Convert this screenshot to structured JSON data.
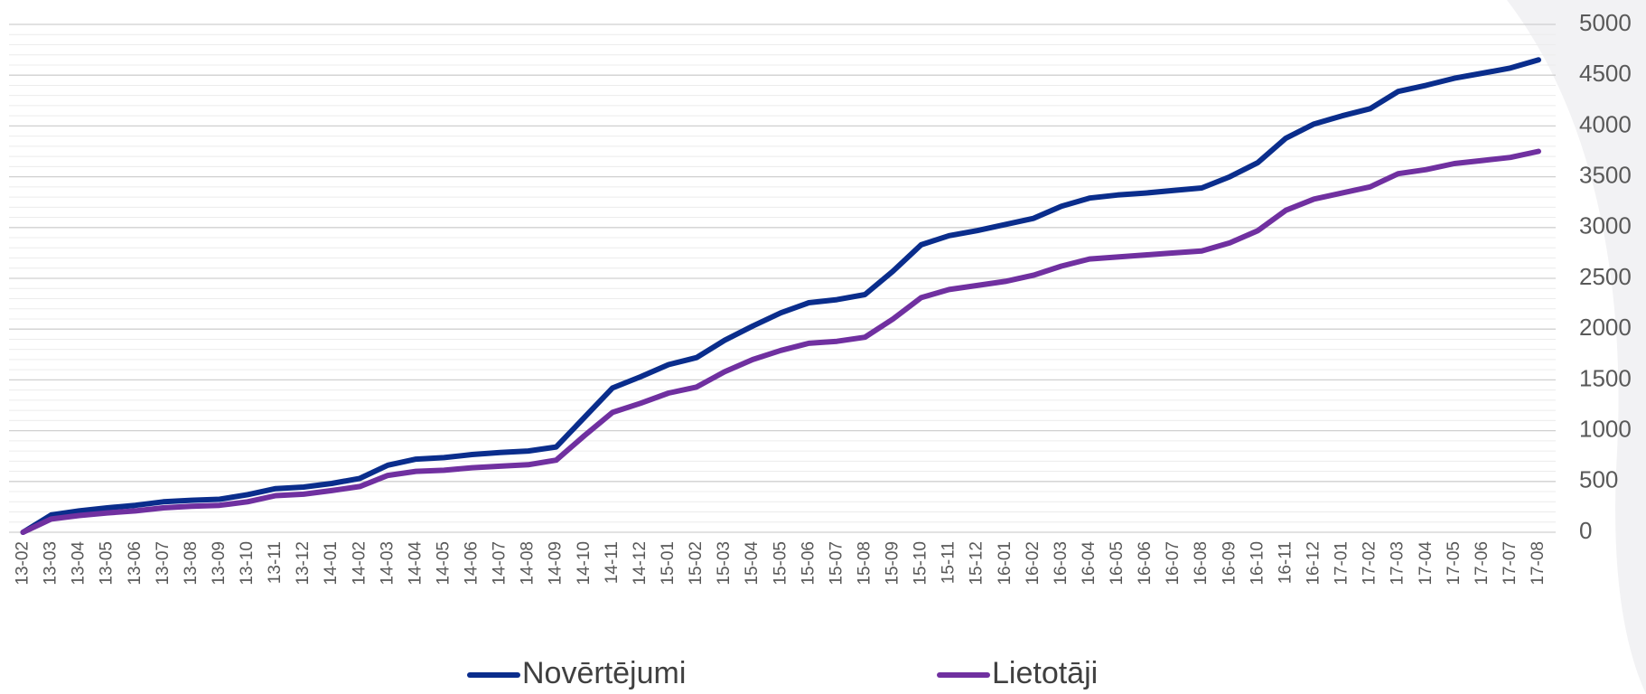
{
  "chart_data": {
    "type": "line",
    "categories": [
      "13-02",
      "13-03",
      "13-04",
      "13-05",
      "13-06",
      "13-07",
      "13-08",
      "13-09",
      "13-10",
      "13-11",
      "13-12",
      "14-01",
      "14-02",
      "14-03",
      "14-04",
      "14-05",
      "14-06",
      "14-07",
      "14-08",
      "14-09",
      "14-10",
      "14-11",
      "14-12",
      "15-01",
      "15-02",
      "15-03",
      "15-04",
      "15-05",
      "15-06",
      "15-07",
      "15-08",
      "15-09",
      "15-10",
      "15-11",
      "15-12",
      "16-01",
      "16-02",
      "16-03",
      "16-04",
      "16-05",
      "16-06",
      "16-07",
      "16-08",
      "16-09",
      "16-10",
      "16-11",
      "16-12",
      "17-01",
      "17-02",
      "17-03",
      "17-04",
      "17-05",
      "17-06",
      "17-07",
      "17-08"
    ],
    "series": [
      {
        "name": "Novērtējumi",
        "color": "#0a2d8c",
        "values": [
          0,
          170,
          210,
          240,
          265,
          300,
          315,
          325,
          370,
          430,
          445,
          480,
          530,
          660,
          720,
          735,
          765,
          785,
          800,
          840,
          1130,
          1420,
          1530,
          1650,
          1720,
          1890,
          2030,
          2160,
          2260,
          2290,
          2340,
          2570,
          2830,
          2920,
          2970,
          3030,
          3090,
          3210,
          3290,
          3320,
          3340,
          3365,
          3390,
          3500,
          3640,
          3880,
          4020,
          4100,
          4170,
          4340,
          4400,
          4470,
          4520,
          4570,
          4650
        ]
      },
      {
        "name": "Lietotāji",
        "color": "#7030a0",
        "values": [
          0,
          130,
          165,
          190,
          210,
          240,
          255,
          265,
          300,
          360,
          375,
          410,
          450,
          560,
          600,
          610,
          635,
          650,
          665,
          710,
          950,
          1180,
          1270,
          1370,
          1430,
          1580,
          1700,
          1790,
          1860,
          1880,
          1920,
          2100,
          2310,
          2390,
          2430,
          2470,
          2530,
          2620,
          2690,
          2710,
          2730,
          2750,
          2770,
          2850,
          2970,
          3170,
          3280,
          3340,
          3400,
          3530,
          3570,
          3630,
          3660,
          3690,
          3750
        ]
      }
    ],
    "ylim": [
      0,
      5000
    ],
    "yticks": [
      0,
      500,
      1000,
      1500,
      2000,
      2500,
      3000,
      3500,
      4000,
      4500,
      5000
    ],
    "grid": true,
    "y_axis_side": "right",
    "legend": "bottom"
  }
}
